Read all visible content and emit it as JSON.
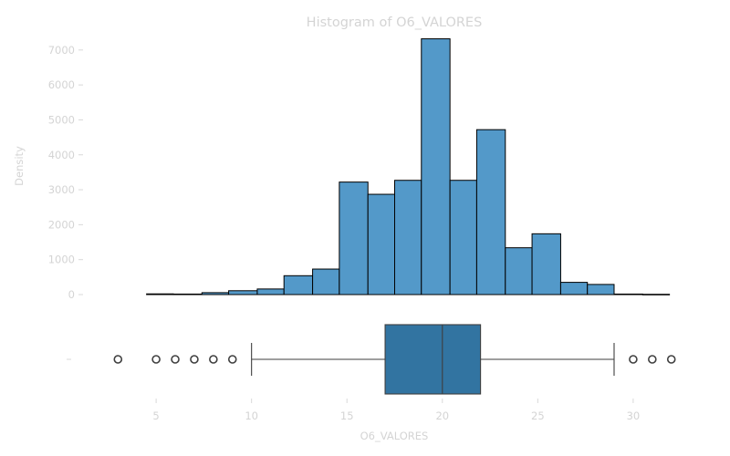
{
  "chart_data": [
    {
      "type": "histogram",
      "title": "Histogram of O6_VALORES",
      "ylabel": "Density",
      "xlim": [
        1.6,
        33.4
      ],
      "ylim": [
        0,
        7700
      ],
      "yticks": [
        0,
        1000,
        2000,
        3000,
        4000,
        5000,
        6000,
        7000
      ],
      "bins": [
        {
          "x0": 4.5,
          "x1": 5.9,
          "value": 20
        },
        {
          "x0": 5.9,
          "x1": 7.4,
          "value": 15
        },
        {
          "x0": 7.4,
          "x1": 8.8,
          "value": 55
        },
        {
          "x0": 8.8,
          "x1": 10.3,
          "value": 110
        },
        {
          "x0": 10.3,
          "x1": 11.7,
          "value": 160
        },
        {
          "x0": 11.7,
          "x1": 13.2,
          "value": 540
        },
        {
          "x0": 13.2,
          "x1": 14.6,
          "value": 730
        },
        {
          "x0": 14.6,
          "x1": 16.1,
          "value": 3220
        },
        {
          "x0": 16.1,
          "x1": 17.5,
          "value": 2870
        },
        {
          "x0": 17.5,
          "x1": 18.9,
          "value": 3270
        },
        {
          "x0": 18.9,
          "x1": 20.4,
          "value": 7320
        },
        {
          "x0": 20.4,
          "x1": 21.8,
          "value": 3270
        },
        {
          "x0": 21.8,
          "x1": 23.3,
          "value": 4720
        },
        {
          "x0": 23.3,
          "x1": 24.7,
          "value": 1340
        },
        {
          "x0": 24.7,
          "x1": 26.2,
          "value": 1740
        },
        {
          "x0": 26.2,
          "x1": 27.6,
          "value": 350
        },
        {
          "x0": 27.6,
          "x1": 29.0,
          "value": 290
        },
        {
          "x0": 29.0,
          "x1": 30.5,
          "value": 15
        },
        {
          "x0": 30.5,
          "x1": 31.9,
          "value": 8
        }
      ]
    },
    {
      "type": "boxplot",
      "xlabel": "O6_VALORES",
      "ytick_label": "-",
      "xticks": [
        5,
        10,
        15,
        20,
        25,
        30
      ],
      "xlim": [
        1.6,
        33.4
      ],
      "stats": {
        "whislo": 10,
        "q1": 17,
        "median": 20,
        "q3": 22,
        "whishi": 29
      },
      "fliers": [
        3,
        5,
        6,
        7,
        8,
        9,
        30,
        31,
        32
      ]
    }
  ],
  "colors": {
    "hist_fill": "#5399c9",
    "box_fill": "#3274a1",
    "text": "#d4d4d4"
  }
}
